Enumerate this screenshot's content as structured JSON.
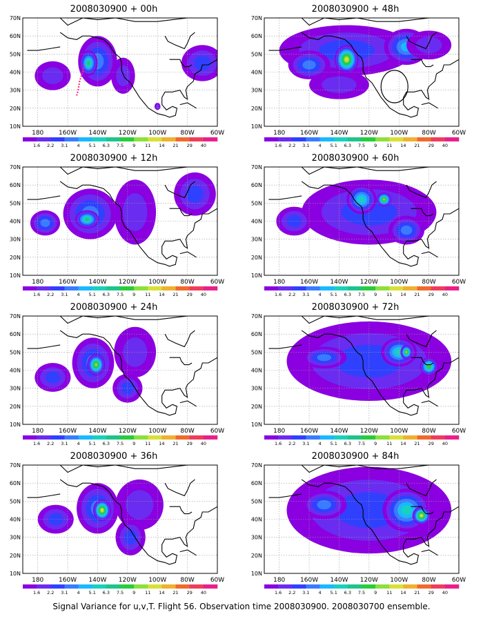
{
  "caption": "Signal Variance for u,v,T. Flight 56. Observation time 2008030900. 2008030700 ensemble.",
  "lat_labels": [
    "10N",
    "20N",
    "30N",
    "40N",
    "50N",
    "60N",
    "70N"
  ],
  "lon_labels": [
    "180",
    "160W",
    "140W",
    "120W",
    "100W",
    "80W",
    "60W"
  ],
  "colorbar_labels": [
    "1.6",
    "2.2",
    "3.1",
    "4",
    "5.1",
    "6.3",
    "7.5",
    "9",
    "11",
    "14",
    "21",
    "29",
    "40"
  ],
  "colorbar_colors": [
    "#8a00e0",
    "#6a2cf0",
    "#3040ff",
    "#3a7cff",
    "#19b8ff",
    "#18d0c0",
    "#1ec48a",
    "#28cc3c",
    "#8ce03c",
    "#d8e038",
    "#f0b030",
    "#f06a2c",
    "#f03c5c",
    "#e8208c"
  ],
  "colors": {
    "coast": "#000000",
    "grid": "#9a9a9a",
    "flight_track": "#ff2a7a",
    "circle": "#000000"
  },
  "panels": [
    {
      "title": "2008030900 + 00h",
      "blobs": [
        {
          "lon": -140,
          "lat": 46,
          "rlon": 13,
          "rlat": 14,
          "level": 3
        },
        {
          "lon": -146,
          "lat": 45,
          "rlon": 6,
          "rlat": 7,
          "level": 6
        },
        {
          "lon": -170,
          "lat": 38,
          "rlon": 12,
          "rlat": 8,
          "level": 1
        },
        {
          "lon": -123,
          "lat": 38,
          "rlon": 8,
          "rlat": 10,
          "level": 1
        },
        {
          "lon": -70,
          "lat": 45,
          "rlon": 14,
          "rlat": 10,
          "level": 2
        },
        {
          "lon": -100,
          "lat": 21,
          "rlon": 2,
          "rlat": 2,
          "level": 1
        }
      ],
      "track": [
        [
          -149,
          44
        ],
        [
          -150,
          40
        ],
        [
          -152,
          35
        ],
        [
          -153,
          30
        ],
        [
          -154,
          27
        ]
      ],
      "circle": null
    },
    {
      "title": "2008030900 + 48h",
      "blobs": [
        {
          "lon": -135,
          "lat": 52,
          "rlon": 45,
          "rlat": 14,
          "level": 2
        },
        {
          "lon": -135,
          "lat": 47,
          "rlon": 8,
          "rlat": 8,
          "level": 9
        },
        {
          "lon": -160,
          "lat": 44,
          "rlon": 14,
          "rlat": 8,
          "level": 3
        },
        {
          "lon": -95,
          "lat": 54,
          "rlon": 15,
          "rlat": 10,
          "level": 4
        },
        {
          "lon": -140,
          "lat": 33,
          "rlon": 20,
          "rlat": 8,
          "level": 1
        },
        {
          "lon": -80,
          "lat": 55,
          "rlon": 15,
          "rlat": 8,
          "level": 1
        }
      ],
      "track": [],
      "circle": {
        "lon": -103,
        "lat": 32,
        "rlon": 9,
        "rlat": 9
      }
    },
    {
      "title": "2008030900 + 12h",
      "blobs": [
        {
          "lon": -145,
          "lat": 44,
          "rlon": 18,
          "rlat": 14,
          "level": 3
        },
        {
          "lon": -147,
          "lat": 41,
          "rlon": 8,
          "rlat": 5,
          "level": 6
        },
        {
          "lon": -175,
          "lat": 39,
          "rlon": 10,
          "rlat": 7,
          "level": 3
        },
        {
          "lon": -115,
          "lat": 45,
          "rlon": 14,
          "rlat": 18,
          "level": 1
        },
        {
          "lon": -75,
          "lat": 55,
          "rlon": 14,
          "rlat": 12,
          "level": 2
        }
      ],
      "track": [],
      "circle": null
    },
    {
      "title": "2008030900 + 60h",
      "blobs": [
        {
          "lon": -120,
          "lat": 45,
          "rlon": 45,
          "rlat": 18,
          "level": 2
        },
        {
          "lon": -125,
          "lat": 52,
          "rlon": 10,
          "rlat": 8,
          "level": 5
        },
        {
          "lon": -110,
          "lat": 52,
          "rlon": 5,
          "rlat": 4,
          "level": 8
        },
        {
          "lon": -95,
          "lat": 35,
          "rlon": 12,
          "rlat": 8,
          "level": 3
        },
        {
          "lon": -170,
          "lat": 40,
          "rlon": 12,
          "rlat": 8,
          "level": 2
        }
      ],
      "track": [],
      "circle": null
    },
    {
      "title": "2008030900 + 24h",
      "blobs": [
        {
          "lon": -143,
          "lat": 44,
          "rlon": 14,
          "rlat": 14,
          "level": 3
        },
        {
          "lon": -141,
          "lat": 43,
          "rlon": 6,
          "rlat": 6,
          "level": 8
        },
        {
          "lon": -170,
          "lat": 36,
          "rlon": 12,
          "rlat": 8,
          "level": 2
        },
        {
          "lon": -115,
          "lat": 50,
          "rlon": 14,
          "rlat": 14,
          "level": 1
        },
        {
          "lon": -120,
          "lat": 30,
          "rlon": 10,
          "rlat": 8,
          "level": 2
        }
      ],
      "track": [],
      "circle": null
    },
    {
      "title": "2008030900 + 72h",
      "blobs": [
        {
          "lon": -120,
          "lat": 45,
          "rlon": 55,
          "rlat": 22,
          "level": 2
        },
        {
          "lon": -100,
          "lat": 50,
          "rlon": 12,
          "rlat": 8,
          "level": 5
        },
        {
          "lon": -95,
          "lat": 50,
          "rlon": 4,
          "rlat": 4,
          "level": 8
        },
        {
          "lon": -80,
          "lat": 42,
          "rlon": 6,
          "rlat": 5,
          "level": 7
        },
        {
          "lon": -150,
          "lat": 47,
          "rlon": 15,
          "rlat": 6,
          "level": 3
        }
      ],
      "track": [],
      "circle": null
    },
    {
      "title": "2008030900 + 36h",
      "blobs": [
        {
          "lon": -140,
          "lat": 46,
          "rlon": 14,
          "rlat": 14,
          "level": 3
        },
        {
          "lon": -137,
          "lat": 45,
          "rlon": 6,
          "rlat": 6,
          "level": 9
        },
        {
          "lon": -168,
          "lat": 40,
          "rlon": 12,
          "rlat": 8,
          "level": 2
        },
        {
          "lon": -112,
          "lat": 48,
          "rlon": 16,
          "rlat": 14,
          "level": 1
        },
        {
          "lon": -118,
          "lat": 30,
          "rlon": 10,
          "rlat": 10,
          "level": 2
        }
      ],
      "track": [],
      "circle": null
    },
    {
      "title": "2008030900 + 84h",
      "blobs": [
        {
          "lon": -120,
          "lat": 45,
          "rlon": 55,
          "rlat": 24,
          "level": 2
        },
        {
          "lon": -95,
          "lat": 45,
          "rlon": 16,
          "rlat": 12,
          "level": 5
        },
        {
          "lon": -85,
          "lat": 42,
          "rlon": 6,
          "rlat": 5,
          "level": 9
        },
        {
          "lon": -150,
          "lat": 48,
          "rlon": 15,
          "rlat": 8,
          "level": 3
        }
      ],
      "track": [],
      "circle": null
    }
  ]
}
